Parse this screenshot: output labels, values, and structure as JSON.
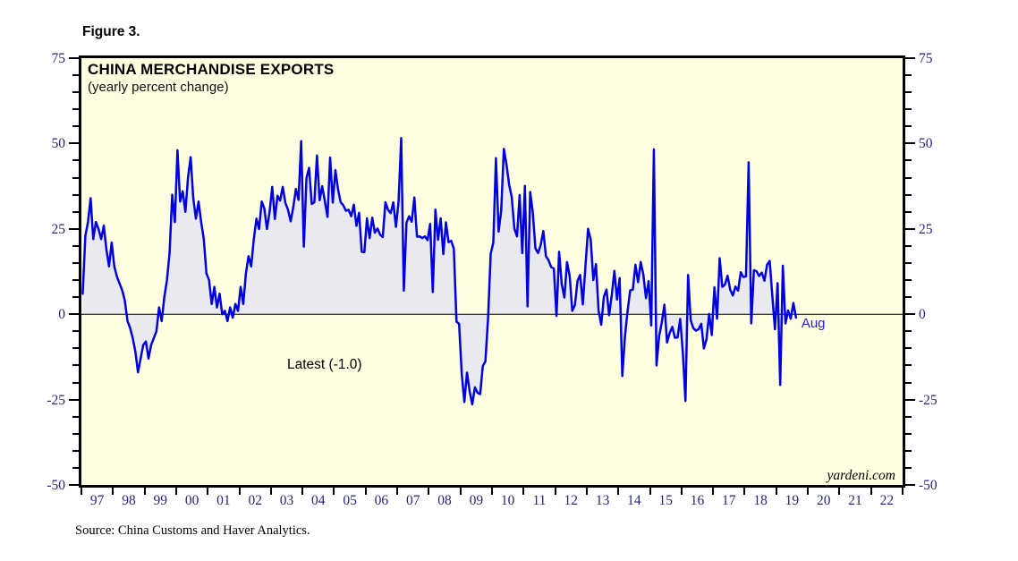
{
  "figure_label": "Figure 3.",
  "source_note": "Source: China Customs and Haver Analytics.",
  "watermark": "yardeni.com",
  "colors": {
    "plot_background": "#fffee1",
    "area_fill": "#e9e9f0",
    "line": "#0000dd",
    "axis_label": "#26267d",
    "annotation_blue": "#2323c8",
    "border": "#000000",
    "zero_line": "#000000"
  },
  "chart_data": {
    "type": "line",
    "title": "CHINA MERCHANDISE EXPORTS",
    "subtitle": "(yearly percent change)",
    "grid": false,
    "legend_position": "none",
    "fill_to_zero": true,
    "y_axis": {
      "min": -50,
      "max": 75,
      "major_tick_interval": 25,
      "minor_tick_interval": 5,
      "tick_values": [
        75,
        50,
        25,
        0,
        -25,
        -50
      ],
      "tick_labels": [
        "75",
        "50",
        "25",
        "0",
        "-25",
        "-50"
      ],
      "sides": "both"
    },
    "x_axis": {
      "start_year": 1997,
      "end_year": 2023,
      "tick_labels": [
        "97",
        "98",
        "99",
        "00",
        "01",
        "02",
        "03",
        "04",
        "05",
        "06",
        "07",
        "08",
        "09",
        "10",
        "11",
        "12",
        "13",
        "14",
        "15",
        "16",
        "17",
        "18",
        "19",
        "20",
        "21",
        "22"
      ]
    },
    "series": [
      {
        "name": "China merchandise exports (yearly percent change)",
        "frequency": "monthly",
        "start": "1997-01",
        "end": "2019-08",
        "values": [
          6,
          23,
          27,
          34,
          22,
          27,
          25,
          22,
          26,
          19,
          14,
          21,
          14,
          11,
          9,
          7,
          4,
          -2,
          -4,
          -7,
          -11,
          -17,
          -13,
          -9,
          -8,
          -13,
          -9,
          -7,
          -5,
          2,
          -2,
          5,
          10,
          18,
          35,
          27,
          48,
          33,
          36,
          30,
          40,
          46,
          34,
          28,
          33,
          27,
          22,
          12,
          10,
          3,
          8,
          2,
          6,
          0,
          1,
          -2,
          2,
          -1,
          3,
          1,
          8,
          3,
          12,
          17,
          14,
          22,
          28,
          25,
          33,
          31,
          25,
          30,
          37.3,
          27.9,
          34.7,
          33.3,
          37.3,
          32.6,
          30.6,
          27.2,
          31.4,
          36.7,
          33.5,
          50.7,
          19.8,
          39.8,
          42.9,
          32.3,
          32.8,
          46.5,
          33.4,
          37.5,
          33.1,
          28.5,
          45.9,
          32.7,
          42.2,
          36.6,
          32.8,
          31.9,
          30.3,
          30.6,
          28.7,
          32.1,
          25.9,
          29.7,
          18.3,
          18.2,
          28.1,
          22.3,
          28.3,
          23.9,
          25.1,
          23.3,
          22.6,
          32.8,
          30.6,
          29.6,
          32.8,
          25.6,
          33.0,
          51.6,
          6.9,
          26.8,
          28.7,
          27.1,
          34.2,
          22.7,
          22.8,
          22.3,
          22.8,
          21.7,
          26.5,
          6.5,
          30.6,
          21.8,
          28.1,
          17.6,
          26.9,
          21.1,
          21.5,
          19.2,
          -2.2,
          -2.8,
          -17.5,
          -25.7,
          -17.1,
          -22.6,
          -26.4,
          -21.4,
          -23.0,
          -23.4,
          -15.2,
          -13.8,
          -1.2,
          17.7,
          21.0,
          45.7,
          24.2,
          30.4,
          48.4,
          43.9,
          38.0,
          34.3,
          25.1,
          22.8,
          34.9,
          17.9,
          37.6,
          2.3,
          35.8,
          29.8,
          19.3,
          17.9,
          20.3,
          24.4,
          17.0,
          15.8,
          13.8,
          13.4,
          -0.5,
          18.3,
          8.8,
          4.9,
          15.3,
          11.3,
          1.0,
          2.7,
          9.8,
          11.5,
          2.9,
          14.1,
          25.0,
          21.8,
          10.0,
          14.7,
          1.0,
          -3.1,
          5.1,
          7.2,
          -0.3,
          5.6,
          12.7,
          4.3,
          10.6,
          -18.1,
          -6.6,
          0.9,
          7.0,
          7.2,
          14.5,
          9.4,
          15.3,
          11.6,
          4.7,
          9.7,
          -3.3,
          48.3,
          -15.0,
          -6.4,
          -2.5,
          2.8,
          -8.3,
          -5.5,
          -3.7,
          -6.9,
          -6.8,
          -1.4,
          -11.2,
          -25.4,
          11.5,
          -1.8,
          -4.1,
          -4.8,
          -4.4,
          -2.8,
          -10.0,
          -7.3,
          0.1,
          -6.1,
          7.9,
          -1.3,
          16.4,
          8.0,
          8.7,
          11.3,
          7.2,
          5.5,
          8.1,
          6.9,
          12.3,
          10.9,
          11.1,
          44.5,
          -2.7,
          12.9,
          12.6,
          11.2,
          12.2,
          9.8,
          14.5,
          15.6,
          5.4,
          -4.4,
          9.1,
          -20.7,
          14.2,
          -2.7,
          1.1,
          -1.3,
          3.3,
          -1.0
        ]
      }
    ],
    "annotations": {
      "latest_label": "Latest (-1.0)",
      "latest_value": -1.0,
      "last_point_label": "Aug"
    }
  }
}
